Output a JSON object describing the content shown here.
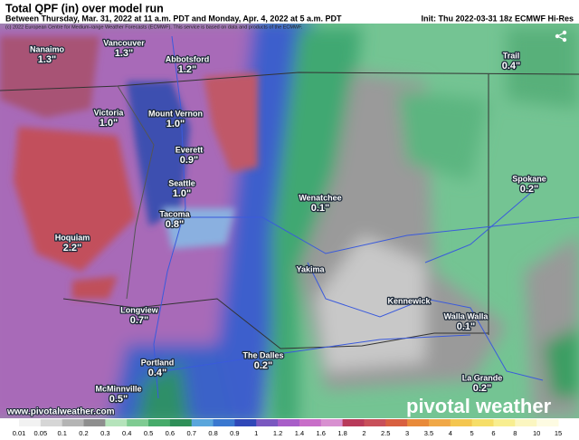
{
  "header": {
    "title": "Total QPF (in) over model run",
    "subtitle": "Between Thursday, Mar. 31, 2022 at 11 a.m. PDT and Monday, Apr. 4, 2022 at 5 a.m. PDT",
    "init": "Init: Thu 2022-03-31 18z ECMWF Hi-Res",
    "copyright": "(c) 2022 European Centre for Medium-range Weather Forecasts (ECMWF). This service is based on data and products of the ECMWF."
  },
  "cities": [
    {
      "name": "Nanaimo",
      "value": "1.3\""
    },
    {
      "name": "Vancouver",
      "value": "1.3\""
    },
    {
      "name": "Abbotsford",
      "value": "1.2\""
    },
    {
      "name": "Victoria",
      "value": "1.0\""
    },
    {
      "name": "Mount Vernon",
      "value": "1.0\""
    },
    {
      "name": "Everett",
      "value": "0.9\""
    },
    {
      "name": "Seattle",
      "value": "1.0\""
    },
    {
      "name": "Tacoma",
      "value": "0.8\""
    },
    {
      "name": "Hoquiam",
      "value": "2.2\""
    },
    {
      "name": "Wenatchee",
      "value": "0.1\""
    },
    {
      "name": "Yakima"
    },
    {
      "name": "Kennewick"
    },
    {
      "name": "Walla Walla",
      "value": "0.1\""
    },
    {
      "name": "Spokane",
      "value": "0.2\""
    },
    {
      "name": "Trail",
      "value": "0.4\""
    },
    {
      "name": "Longview",
      "value": "0.7\""
    },
    {
      "name": "Portland",
      "value": "0.4\""
    },
    {
      "name": "The Dalles",
      "value": "0.2\""
    },
    {
      "name": "La Grande",
      "value": "0.2\""
    },
    {
      "name": "McMinnville",
      "value": "0.5\""
    }
  ],
  "watermark": "pivotal weather",
  "url": "www.pivotalweather.com",
  "colorbar": {
    "labels": [
      "0.01",
      "0.05",
      "0.1",
      "0.2",
      "0.3",
      "0.4",
      "0.5",
      "0.6",
      "0.7",
      "0.8",
      "0.9",
      "1",
      "1.2",
      "1.4",
      "1.6",
      "1.8",
      "2",
      "2.5",
      "3",
      "3.5",
      "4",
      "5",
      "6",
      "8",
      "10",
      "15"
    ],
    "colors": [
      "#f2f2f2",
      "#d6d6d6",
      "#b4b4b4",
      "#8e8e8e",
      "#b5e3bb",
      "#7fcb92",
      "#46ab6a",
      "#2f8f58",
      "#5aa6dc",
      "#3a78d0",
      "#3048b8",
      "#7a58c0",
      "#a85ec8",
      "#c86ec8",
      "#d890d0",
      "#b83a5a",
      "#c8505a",
      "#d86040",
      "#e88a3a",
      "#f0a848",
      "#f4c650",
      "#f6de68",
      "#f8ee90",
      "#fbf6c0",
      "#fdfbe2"
    ]
  }
}
